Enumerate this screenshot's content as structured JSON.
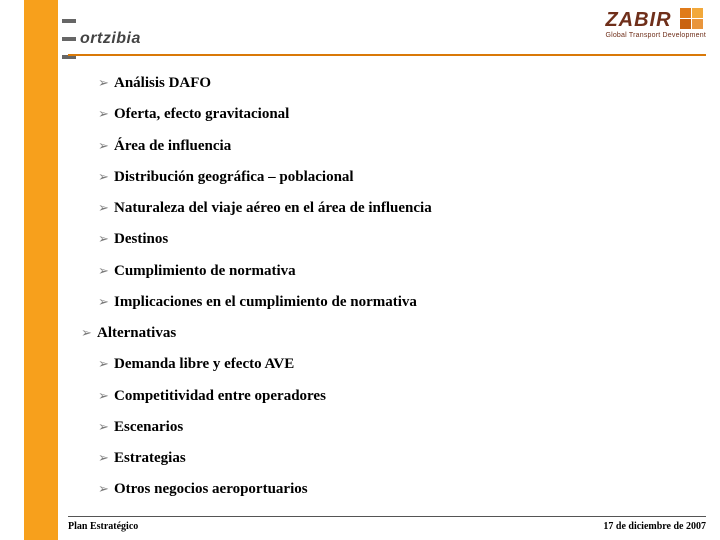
{
  "header": {
    "logo_left": "ortzibia",
    "logo_right_brand": "ZABIR",
    "logo_right_tagline": "Global Transport Development"
  },
  "colors": {
    "orange_bar": "#f7a01c",
    "rule": "#d97908",
    "arrow": "#7a7a7a",
    "brand": "#6f2f1a",
    "swatch": [
      "#e07b1a",
      "#f2a83a",
      "#c96310",
      "#e9953c"
    ]
  },
  "items": [
    {
      "label": "Análisis DAFO",
      "current": false
    },
    {
      "label": "Oferta, efecto gravitacional",
      "current": false
    },
    {
      "label": "Área de influencia",
      "current": false
    },
    {
      "label": "Distribución geográfica – poblacional",
      "current": false
    },
    {
      "label": "Naturaleza del viaje aéreo en el área de influencia",
      "current": false
    },
    {
      "label": "Destinos",
      "current": false
    },
    {
      "label": "Cumplimiento de normativa",
      "current": false
    },
    {
      "label": "Implicaciones en el cumplimiento de normativa",
      "current": false
    },
    {
      "label": "Alternativas",
      "current": true
    },
    {
      "label": "Demanda libre y efecto AVE",
      "current": false
    },
    {
      "label": "Competitividad entre operadores",
      "current": false
    },
    {
      "label": "Escenarios",
      "current": false
    },
    {
      "label": "Estrategias",
      "current": false
    },
    {
      "label": "Otros negocios aeroportuarios",
      "current": false
    }
  ],
  "footer": {
    "left": "Plan Estratégico",
    "right": "17 de diciembre de 2007"
  }
}
